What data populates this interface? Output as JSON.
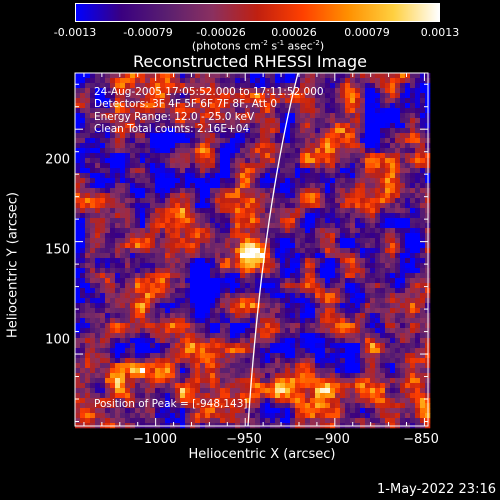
{
  "colorbar": {
    "tick_labels": [
      "-0.0013",
      "-0.00079",
      "-0.00026",
      "0.00026",
      "0.00079",
      "0.0013"
    ],
    "unit": "(photons cm",
    "unit_exp1": "-2",
    "unit_mid": " s",
    "unit_exp2": "-1",
    "unit_mid2": " asec",
    "unit_exp3": "-2",
    "unit_end": ")"
  },
  "info": {
    "time_range": "24-Aug-2005 17:05:52.000 to 17:11:52.000",
    "detectors": "Detectors: 3F 4F 5F 6F 7F 8F, Att 0",
    "energy": "Energy Range: 12.0 - 25.0 keV",
    "method": "Clean     Total counts: 2.16E+04",
    "peak": "Position of Peak = [-948,143]"
  },
  "datestamp": "1-May-2022 23:16",
  "chart_data": {
    "type": "heatmap",
    "title": "Reconstructed RHESSI Image",
    "xlabel": "Heliocentric X (arcsec)",
    "ylabel": "Heliocentric Y (arcsec)",
    "xlim": [
      -1045,
      -848
    ],
    "ylim": [
      68,
      225
    ],
    "x_ticks": [
      -1000,
      -950,
      -900,
      -850
    ],
    "x_tick_labels": [
      "−1000",
      "−950",
      "−900",
      "−850"
    ],
    "y_ticks": [
      100,
      150,
      200
    ],
    "y_tick_labels": [
      "100",
      "150",
      "200"
    ],
    "colorbar_range": [
      -0.0013,
      0.0013
    ],
    "peak": [
      -948,
      143
    ],
    "colormap": [
      "#0000ff",
      "#3a0080",
      "#5a1f70",
      "#8a3060",
      "#c02010",
      "#ff4000",
      "#ff9000",
      "#ffd040",
      "#ffffff"
    ]
  }
}
